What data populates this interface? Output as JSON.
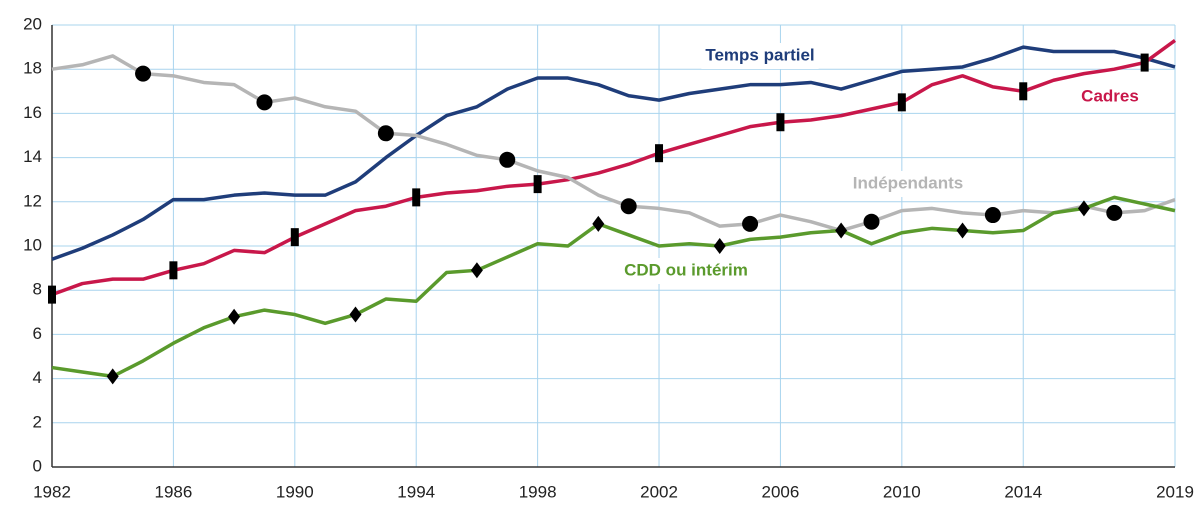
{
  "chart_data": {
    "type": "line",
    "x": [
      1982,
      1983,
      1984,
      1985,
      1986,
      1987,
      1988,
      1989,
      1990,
      1991,
      1992,
      1993,
      1994,
      1995,
      1996,
      1997,
      1998,
      1999,
      2000,
      2001,
      2002,
      2003,
      2004,
      2005,
      2006,
      2007,
      2008,
      2009,
      2010,
      2011,
      2012,
      2013,
      2014,
      2015,
      2016,
      2017,
      2018,
      2019
    ],
    "series": [
      {
        "name": "Temps partiel",
        "color": "#1f3d7a",
        "values": [
          9.4,
          9.9,
          10.5,
          11.2,
          12.1,
          12.1,
          12.3,
          12.4,
          12.3,
          12.3,
          12.9,
          14.0,
          15.0,
          15.9,
          16.3,
          17.1,
          17.6,
          17.6,
          17.3,
          16.8,
          16.6,
          16.9,
          17.1,
          17.3,
          17.3,
          17.4,
          17.1,
          17.5,
          17.9,
          18.0,
          18.1,
          18.5,
          19.0,
          18.8,
          18.8,
          18.8,
          18.5,
          18.1
        ]
      },
      {
        "name": "Cadres",
        "color": "#c8174a",
        "marker": "rect",
        "values": [
          7.8,
          8.3,
          8.5,
          8.5,
          8.9,
          9.2,
          9.8,
          9.7,
          10.4,
          11.0,
          11.6,
          11.8,
          12.2,
          12.4,
          12.5,
          12.7,
          12.8,
          13.0,
          13.3,
          13.7,
          14.2,
          14.6,
          15.0,
          15.4,
          15.6,
          15.7,
          15.9,
          16.2,
          16.5,
          17.3,
          17.7,
          17.2,
          17.0,
          17.5,
          17.8,
          18.0,
          18.3,
          19.3
        ]
      },
      {
        "name": "Indépendants",
        "color": "#b5b5b5",
        "marker": "circle",
        "values": [
          18.0,
          18.2,
          18.6,
          17.8,
          17.7,
          17.4,
          17.3,
          16.5,
          16.7,
          16.3,
          16.1,
          15.1,
          15.0,
          14.6,
          14.1,
          13.9,
          13.4,
          13.1,
          12.3,
          11.8,
          11.7,
          11.5,
          10.9,
          11.0,
          11.4,
          11.1,
          10.7,
          11.1,
          11.6,
          11.7,
          11.5,
          11.4,
          11.6,
          11.5,
          11.8,
          11.5,
          11.6,
          12.1
        ]
      },
      {
        "name": "CDD ou intérim",
        "color": "#5a9a2c",
        "marker": "diamond",
        "values": [
          4.5,
          4.3,
          4.1,
          4.8,
          5.6,
          6.3,
          6.8,
          7.1,
          6.9,
          6.5,
          6.9,
          7.6,
          7.5,
          8.8,
          8.9,
          9.5,
          10.1,
          10.0,
          11.0,
          10.5,
          10.0,
          10.1,
          10.0,
          10.3,
          10.4,
          10.6,
          10.7,
          10.1,
          10.6,
          10.8,
          10.7,
          10.6,
          10.7,
          11.5,
          11.7,
          12.2,
          11.9,
          11.6
        ]
      }
    ],
    "xlim": [
      1982,
      2019
    ],
    "xticks": [
      1982,
      1986,
      1990,
      1994,
      1998,
      2002,
      2006,
      2010,
      2014,
      2019
    ],
    "ylim": [
      0,
      20
    ],
    "yticks": [
      0,
      2,
      4,
      6,
      8,
      10,
      12,
      14,
      16,
      18,
      20
    ],
    "grid": true
  }
}
